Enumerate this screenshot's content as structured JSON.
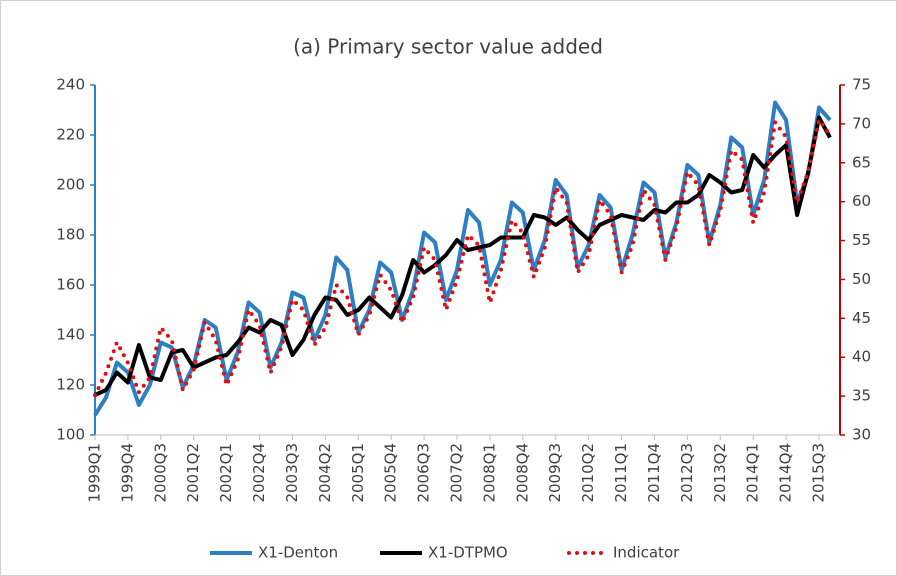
{
  "chart_data": {
    "type": "line",
    "title": "(a) Primary sector value added",
    "categories": [
      "1999Q1",
      null,
      null,
      "1999Q4",
      null,
      null,
      "2000Q3",
      null,
      null,
      "2001Q2",
      null,
      null,
      "2002Q1",
      null,
      null,
      "2002Q4",
      null,
      null,
      "2003Q3",
      null,
      null,
      "2004Q2",
      null,
      null,
      "2005Q1",
      null,
      null,
      "2005Q4",
      null,
      null,
      "2006Q3",
      null,
      null,
      "2007Q2",
      null,
      null,
      "2008Q1",
      null,
      null,
      "2008Q4",
      null,
      null,
      "2009Q3",
      null,
      null,
      "2010Q2",
      null,
      null,
      "2011Q1",
      null,
      null,
      "2011Q4",
      null,
      null,
      "2012Q3",
      null,
      null,
      "2013Q2",
      null,
      null,
      "2014Q1",
      null,
      null,
      "2014Q4",
      null,
      null,
      "2015Q3",
      null
    ],
    "series": [
      {
        "name": "X1-Denton",
        "color": "#2e7ec4",
        "style": "solid",
        "values": [
          108,
          115,
          129,
          125,
          112,
          120,
          137,
          135,
          119,
          128,
          146,
          143,
          122,
          133,
          153,
          149,
          127,
          137,
          157,
          155,
          138,
          148,
          171,
          166,
          141,
          150,
          169,
          165,
          146,
          158,
          181,
          177,
          154,
          166,
          190,
          185,
          160,
          170,
          193,
          189,
          166,
          178,
          202,
          196,
          167,
          176,
          196,
          191,
          166,
          180,
          201,
          197,
          171,
          185,
          208,
          204,
          177,
          192,
          219,
          215,
          188,
          202,
          233,
          226,
          193,
          204,
          231,
          226
        ]
      },
      {
        "name": "X1-DTPMO",
        "color": "#000000",
        "style": "solid",
        "values": [
          116,
          118,
          125,
          121,
          136,
          123,
          122,
          133,
          134,
          127,
          129,
          131,
          132,
          137,
          143,
          141,
          146,
          144,
          132,
          138,
          148,
          155,
          154,
          148,
          150,
          155,
          151,
          147,
          156,
          170,
          165,
          168,
          172,
          178,
          174,
          175,
          176,
          179,
          179,
          179,
          188,
          187,
          184,
          187,
          182,
          178,
          184,
          186,
          188,
          187,
          186,
          190,
          189,
          193,
          193,
          196,
          204,
          201,
          197,
          198,
          212,
          207,
          212,
          216,
          188,
          205,
          227,
          219
        ]
      },
      {
        "name": "Indicator",
        "color": "#e01010",
        "style": "dotted",
        "axis": "y2",
        "values": [
          35.1,
          38.0,
          41.9,
          39.3,
          35.5,
          37.4,
          43.8,
          42.2,
          35.8,
          38.4,
          44.5,
          42.2,
          36.4,
          39.6,
          46.1,
          44.1,
          38.0,
          41.3,
          47.4,
          46.1,
          41.6,
          43.8,
          49.3,
          47.7,
          42.9,
          45.4,
          50.6,
          48.6,
          44.5,
          47.7,
          54.1,
          52.5,
          46.1,
          49.9,
          55.7,
          54.4,
          47.0,
          51.2,
          57.6,
          56.0,
          50.3,
          54.1,
          61.8,
          59.9,
          50.9,
          53.1,
          60.2,
          58.3,
          50.9,
          54.4,
          61.5,
          59.6,
          52.5,
          56.7,
          63.8,
          62.1,
          54.4,
          58.9,
          66.6,
          65.4,
          57.3,
          61.2,
          70.2,
          68.3,
          59.9,
          63.8,
          70.5,
          68.6
        ]
      }
    ],
    "ylim": [
      100,
      240
    ],
    "yticks": [
      100,
      120,
      140,
      160,
      180,
      200,
      220,
      240
    ],
    "y2lim": [
      30,
      75
    ],
    "y2ticks": [
      30,
      35,
      40,
      45,
      50,
      55,
      60,
      65,
      70,
      75
    ],
    "y_axis_color": "#2e7ec4",
    "y2_axis_color": "#c00000",
    "legend": "bottom",
    "grid": false
  }
}
